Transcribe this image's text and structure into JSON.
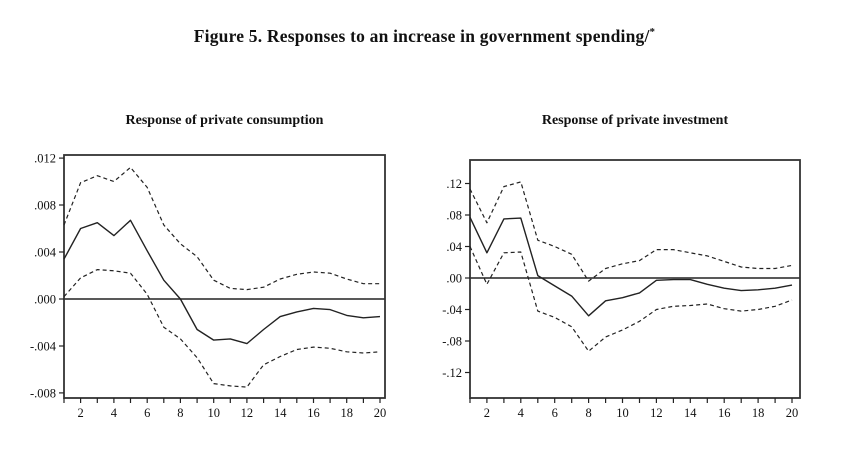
{
  "figure": {
    "title": "Figure 5. Responses to an increase in government spending/",
    "footnote_marker": "*"
  },
  "chart_data": [
    {
      "type": "line",
      "title": "Response of private consumption",
      "xlabel": "",
      "ylabel": "",
      "grid": false,
      "legend": "none",
      "x": [
        1,
        2,
        3,
        4,
        5,
        6,
        7,
        8,
        9,
        10,
        11,
        12,
        13,
        14,
        15,
        16,
        17,
        18,
        19,
        20
      ],
      "x_label_every": 2,
      "ylim": [
        -0.00843,
        0.01226
      ],
      "y_ticks": [
        {
          "v": 0.012,
          "label": ".012"
        },
        {
          "v": 0.008,
          "label": ".008"
        },
        {
          "v": 0.004,
          "label": ".004"
        },
        {
          "v": 0.0,
          "label": ".000"
        },
        {
          "v": -0.004,
          "label": "-.004"
        },
        {
          "v": -0.008,
          "label": "-.008"
        }
      ],
      "series": [
        {
          "name": "mean",
          "style": "solid",
          "values": [
            0.0034,
            0.006,
            0.0065,
            0.0054,
            0.0067,
            0.0041,
            0.0016,
            0.0,
            -0.0026,
            -0.0035,
            -0.0034,
            -0.0038,
            -0.0026,
            -0.0015,
            -0.0011,
            -0.0008,
            -0.0009,
            -0.0014,
            -0.0016,
            -0.0015
          ]
        },
        {
          "name": "upper-band",
          "style": "dashed",
          "values": [
            0.0063,
            0.0099,
            0.0105,
            0.01,
            0.0112,
            0.0095,
            0.0063,
            0.0047,
            0.0036,
            0.0016,
            0.0009,
            0.0008,
            0.001,
            0.0017,
            0.0021,
            0.0023,
            0.0022,
            0.0017,
            0.0013,
            0.0013
          ]
        },
        {
          "name": "lower-band",
          "style": "dashed",
          "values": [
            0.0002,
            0.0018,
            0.0025,
            0.0024,
            0.0022,
            0.0004,
            -0.0024,
            -0.0034,
            -0.005,
            -0.0072,
            -0.0074,
            -0.0075,
            -0.0056,
            -0.0049,
            -0.0043,
            -0.0041,
            -0.0042,
            -0.0045,
            -0.0046,
            -0.0045
          ]
        }
      ]
    },
    {
      "type": "line",
      "title": "Response of private investment",
      "xlabel": "",
      "ylabel": "",
      "grid": false,
      "legend": "none",
      "x": [
        1,
        2,
        3,
        4,
        5,
        6,
        7,
        8,
        9,
        10,
        11,
        12,
        13,
        14,
        15,
        16,
        17,
        18,
        19,
        20
      ],
      "x_label_every": 2,
      "ylim": [
        -0.1524,
        0.1498
      ],
      "y_ticks": [
        {
          "v": 0.12,
          "label": ".12"
        },
        {
          "v": 0.08,
          "label": ".08"
        },
        {
          "v": 0.04,
          "label": ".04"
        },
        {
          "v": 0.0,
          "label": ".00"
        },
        {
          "v": -0.04,
          "label": "-.04"
        },
        {
          "v": -0.08,
          "label": "-.08"
        },
        {
          "v": -0.12,
          "label": "-.12"
        }
      ],
      "series": [
        {
          "name": "mean",
          "style": "solid",
          "values": [
            0.077,
            0.032,
            0.075,
            0.076,
            0.003,
            -0.01,
            -0.023,
            -0.048,
            -0.029,
            -0.025,
            -0.019,
            -0.003,
            -0.002,
            -0.002,
            -0.008,
            -0.013,
            -0.016,
            -0.015,
            -0.013,
            -0.009
          ]
        },
        {
          "name": "upper-band",
          "style": "dashed",
          "values": [
            0.113,
            0.07,
            0.116,
            0.122,
            0.048,
            0.04,
            0.03,
            -0.004,
            0.012,
            0.018,
            0.022,
            0.036,
            0.036,
            0.032,
            0.028,
            0.021,
            0.014,
            0.012,
            0.012,
            0.016
          ]
        },
        {
          "name": "lower-band",
          "style": "dashed",
          "values": [
            0.04,
            -0.008,
            0.032,
            0.033,
            -0.042,
            -0.05,
            -0.062,
            -0.093,
            -0.075,
            -0.066,
            -0.055,
            -0.04,
            -0.036,
            -0.035,
            -0.033,
            -0.039,
            -0.042,
            -0.04,
            -0.036,
            -0.028
          ]
        }
      ]
    }
  ]
}
